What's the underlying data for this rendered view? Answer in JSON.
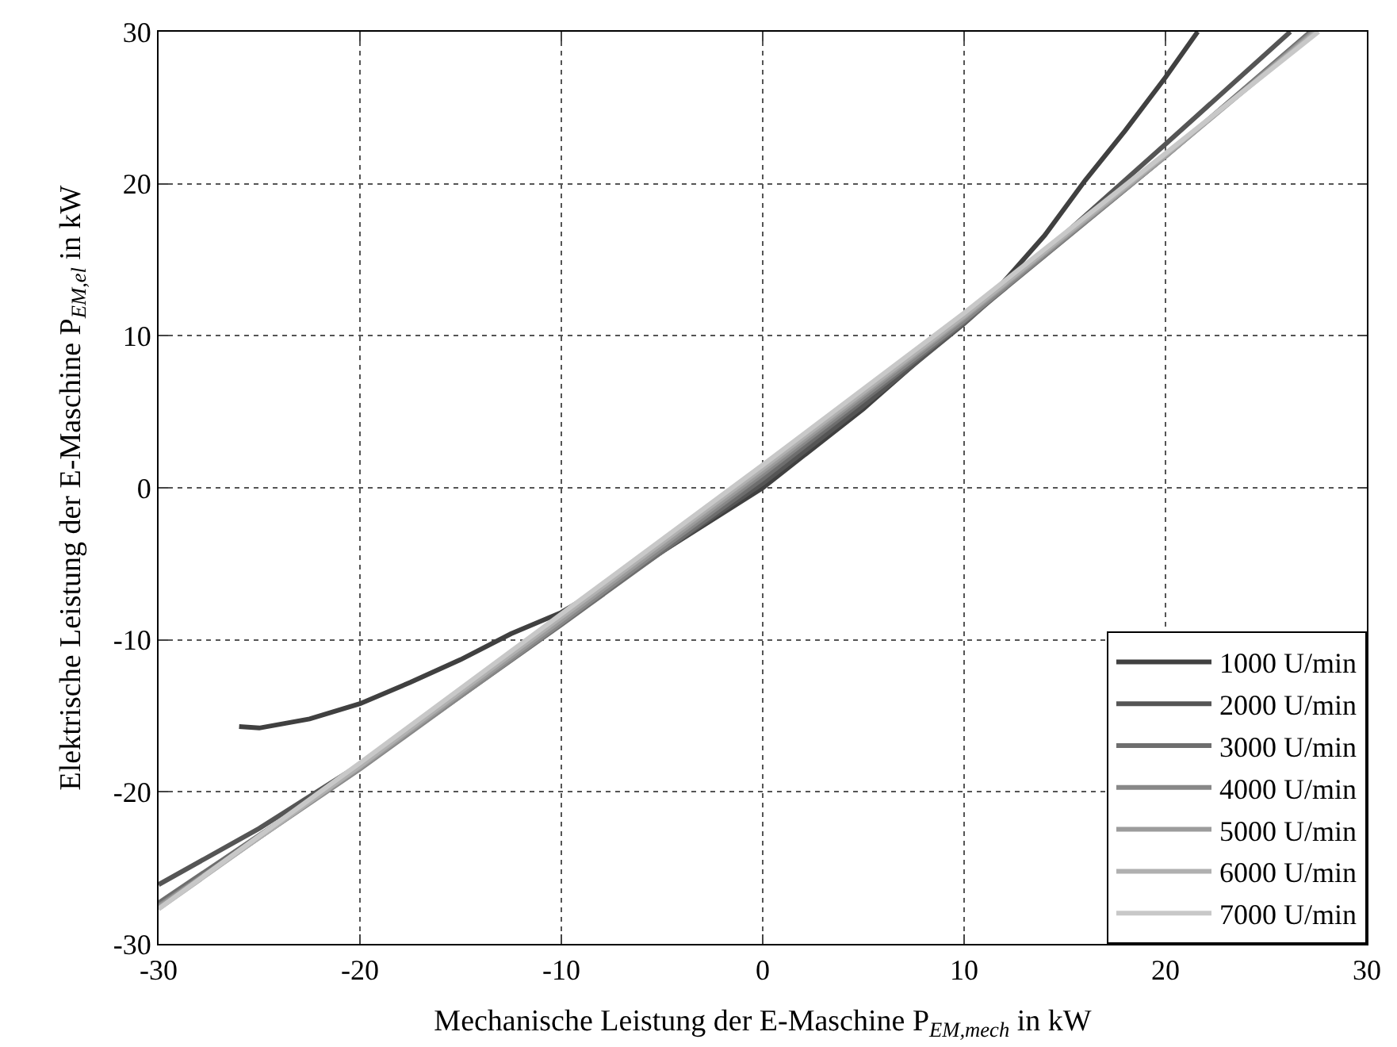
{
  "chart_data": {
    "type": "line",
    "xlabel": "Mechanische Leistung der E-Maschine P$_{EM,mech}$ in kW",
    "ylabel": "Elektrische Leistung der E-Maschine P$_{EM,el}$ in kW",
    "xlim": [
      -30,
      30
    ],
    "ylim": [
      -30,
      30
    ],
    "xticks": [
      -30,
      -20,
      -10,
      0,
      10,
      20,
      30
    ],
    "yticks": [
      -30,
      -20,
      -10,
      0,
      10,
      20,
      30
    ],
    "grid": true,
    "legend": "bottom right",
    "line_style": "solid",
    "marker": "none",
    "series": [
      {
        "name": "1000 U/min",
        "color": "#404040",
        "x": [
          -26,
          -25,
          -22.5,
          -20,
          -17.5,
          -15,
          -12.5,
          -10,
          -5,
          0,
          5,
          10,
          12,
          14,
          16,
          18,
          20,
          21.6
        ],
        "values": [
          -15.7,
          -15.8,
          -15.2,
          -14.2,
          -12.8,
          -11.3,
          -9.6,
          -8.2,
          -4.2,
          0,
          5.2,
          11,
          13.6,
          16.6,
          20.2,
          23.5,
          27,
          30
        ]
      },
      {
        "name": "2000 U/min",
        "color": "#555555",
        "x": [
          -30,
          -25,
          -20,
          -15,
          -10,
          -5,
          0,
          5,
          10,
          15,
          20,
          26.2
        ],
        "values": [
          -26.1,
          -22.4,
          -18.2,
          -13.6,
          -8.8,
          -4.2,
          0.3,
          5.4,
          10.8,
          16.7,
          22.6,
          30
        ]
      },
      {
        "name": "3000 U/min",
        "color": "#6e6e6e",
        "x": [
          -30,
          -20,
          -10,
          0,
          10,
          20,
          27.2
        ],
        "values": [
          -27.3,
          -18.4,
          -9.0,
          0.6,
          10.9,
          21.8,
          30
        ]
      },
      {
        "name": "4000 U/min",
        "color": "#888888",
        "x": [
          -30,
          -20,
          -10,
          0,
          10,
          20,
          27.3
        ],
        "values": [
          -27.5,
          -18.5,
          -8.9,
          0.9,
          11.0,
          21.8,
          30
        ]
      },
      {
        "name": "5000 U/min",
        "color": "#9c9c9c",
        "x": [
          -30,
          -20,
          -10,
          0,
          10,
          20,
          27.4
        ],
        "values": [
          -27.6,
          -18.4,
          -8.7,
          1.1,
          11.2,
          21.8,
          30
        ]
      },
      {
        "name": "6000 U/min",
        "color": "#b0b0b0",
        "x": [
          -30,
          -20,
          -10,
          0,
          10,
          20,
          27.5
        ],
        "values": [
          -27.7,
          -18.3,
          -8.5,
          1.3,
          11.3,
          21.9,
          30
        ]
      },
      {
        "name": "7000 U/min",
        "color": "#c8c8c8",
        "x": [
          -30,
          -20,
          -10,
          0,
          10,
          20,
          27.6
        ],
        "values": [
          -27.7,
          -18.1,
          -8.3,
          1.5,
          11.5,
          22.0,
          30
        ]
      }
    ]
  }
}
